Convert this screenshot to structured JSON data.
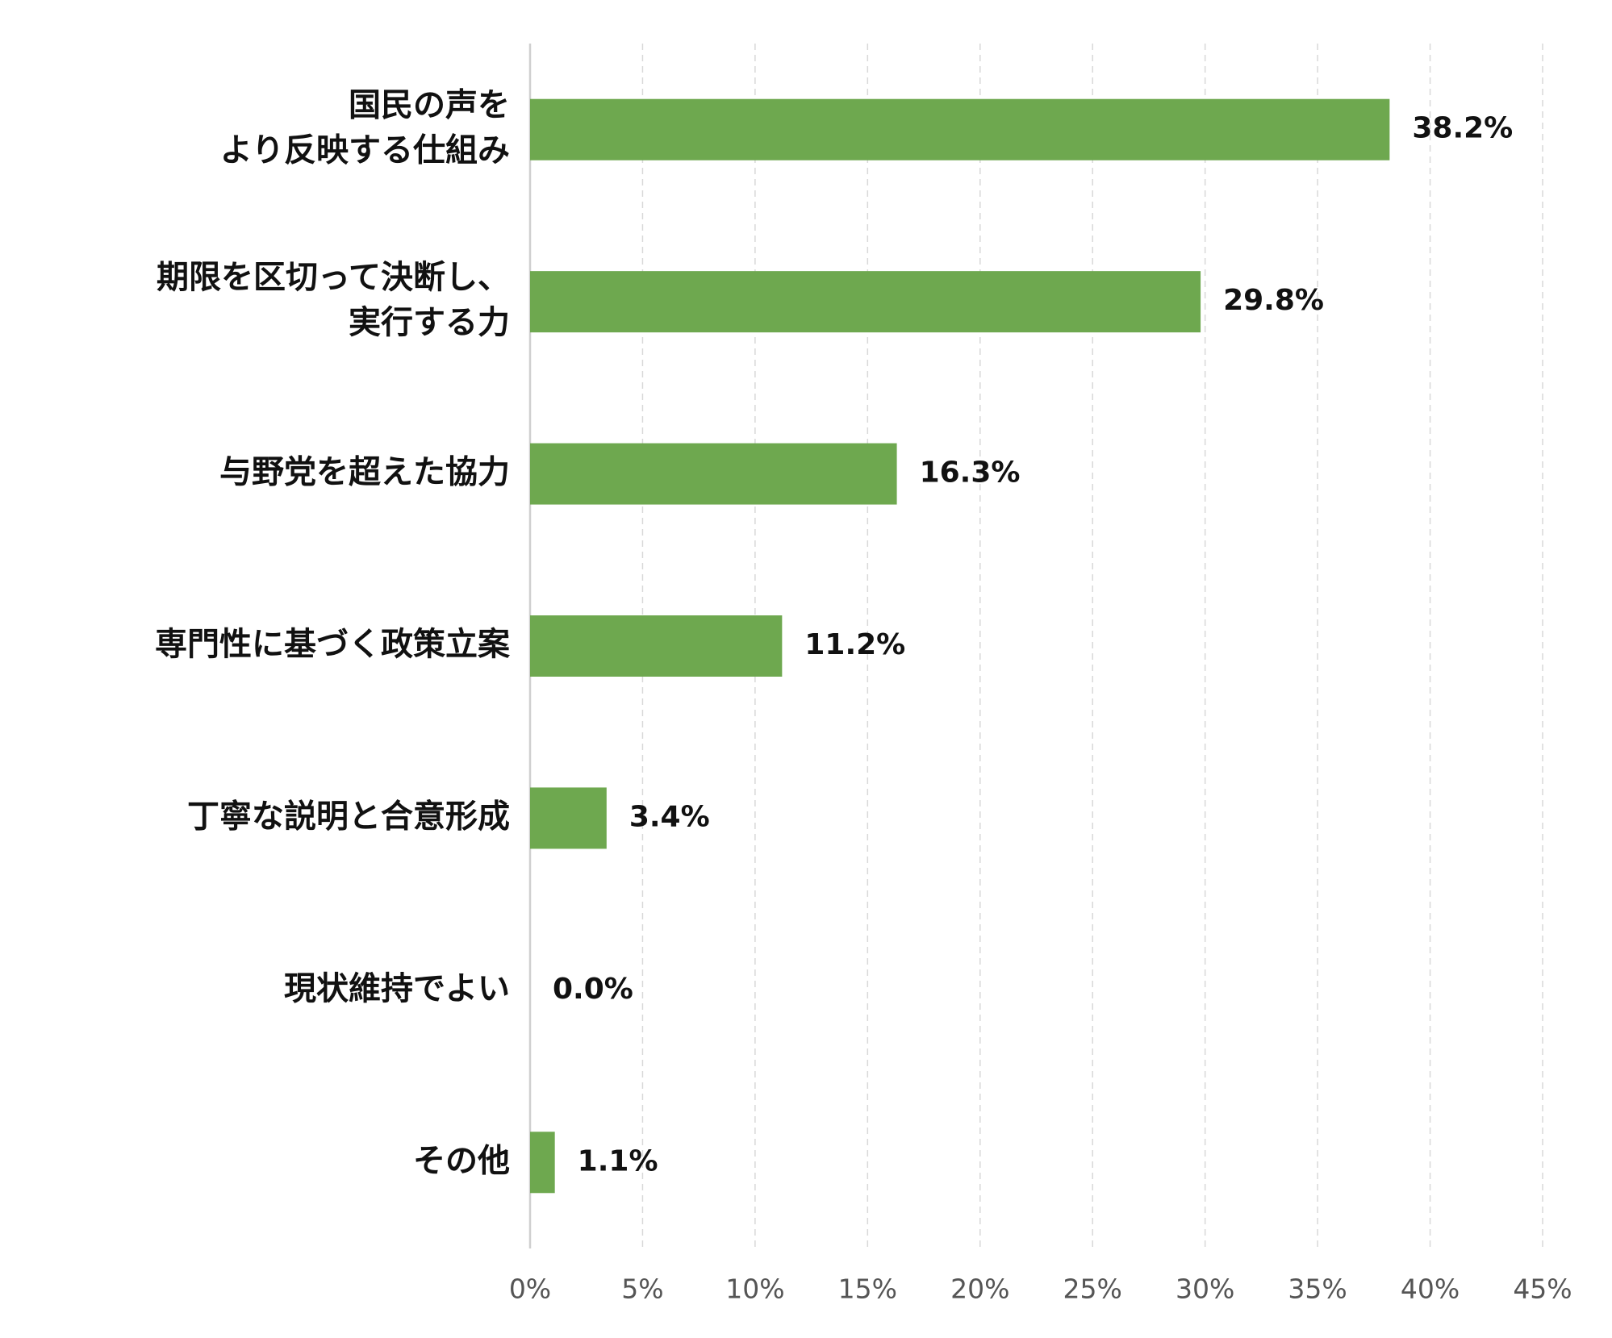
{
  "chart_data": {
    "type": "bar",
    "orientation": "horizontal",
    "categories": [
      [
        "国民の声を",
        "より反映する仕組み"
      ],
      [
        "期限を区切って決断し、",
        "実行する力"
      ],
      [
        "与野党を超えた協力"
      ],
      [
        "専門性に基づく政策立案"
      ],
      [
        "丁寧な説明と合意形成"
      ],
      [
        "現状維持でよい"
      ],
      [
        "その他"
      ]
    ],
    "values": [
      38.2,
      29.8,
      16.3,
      11.2,
      3.4,
      0.0,
      1.1
    ],
    "value_labels": [
      "38.2%",
      "29.8%",
      "16.3%",
      "11.2%",
      "3.4%",
      "0.0%",
      "1.1%"
    ],
    "color": "#6ea84f",
    "xlim": [
      0,
      45
    ],
    "xticks": [
      {
        "value": 0,
        "label": "0%"
      },
      {
        "value": 5,
        "label": "5%"
      },
      {
        "value": 10,
        "label": "10%"
      },
      {
        "value": 15,
        "label": "15%"
      },
      {
        "value": 20,
        "label": "20%"
      },
      {
        "value": 25,
        "label": "25%"
      },
      {
        "value": 30,
        "label": "30%"
      },
      {
        "value": 35,
        "label": "35%"
      },
      {
        "value": 40,
        "label": "40%"
      },
      {
        "value": 45,
        "label": "45%"
      }
    ],
    "grid": true
  }
}
